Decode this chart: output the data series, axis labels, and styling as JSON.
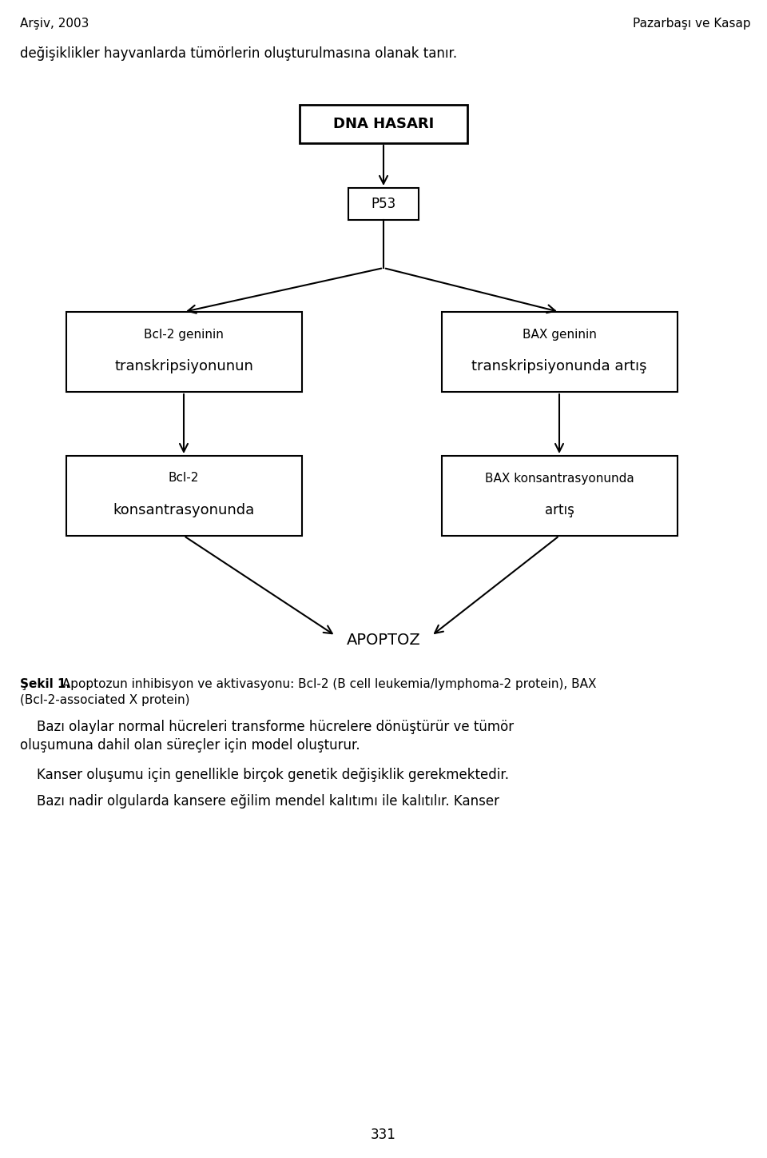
{
  "header_left": "Arşiv, 2003",
  "header_right": "Pazarbaşı ve Kasap",
  "intro_text": "değişiklikler hayvanlarda tümörlerin oluşturulmasına olanak tanır.",
  "box_dna": "DNA HASARI",
  "box_p53": "P53",
  "box_bcl2_top_line1": "Bcl-2 geninin",
  "box_bcl2_top_line2": "transkripsiyonunun",
  "box_bax_top_line1": "BAX geninin",
  "box_bax_top_line2": "transkripsiyonunda artış",
  "box_bcl2_bot_line1": "Bcl-2",
  "box_bcl2_bot_line2": "konsantrasyonunda",
  "box_bax_bot_line1": "BAX konsantrasyonunda",
  "box_bax_bot_line2": "artış",
  "apoptoz_label": "APOPTOZ",
  "caption_bold": "Şekil 1.",
  "caption_line1": " Apoptozun inhibisyon ve aktivasyonu: Bcl-2 (B cell leukemia/lymphoma-2 protein), BAX",
  "caption_line2": "(Bcl-2-associated X protein)",
  "para1_line1": "    Bazı olaylar normal hücreleri transforme hücrelere dönüştürür ve tümör",
  "para1_line2": "oluşumuna dahil olan süreçler için model oluşturur.",
  "para2": "    Kanser oluşumu için genellikle birçok genetik değişiklik gerekmektedir.",
  "para3": "    Bazı nadir olgularda kansere eğilim mendel kalıtımı ile kalıtılır. Kanser",
  "page_number": "331",
  "bg_color": "#ffffff",
  "text_color": "#000000"
}
